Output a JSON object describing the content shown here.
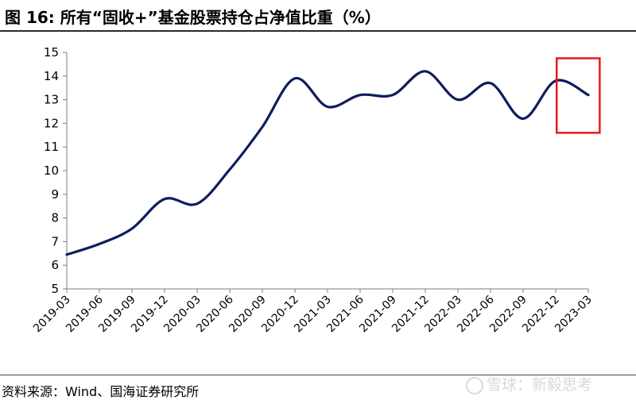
{
  "header": {
    "title": "图 16:  所有“固收+”基金股票持仓占净值比重（%）"
  },
  "footer": {
    "source": "资料来源：Wind、国海证券研究所",
    "watermark": "雪球：新毅思考"
  },
  "style": {
    "line_color": "#0f1c5e",
    "highlight_color": "#e8191a",
    "axis_color": "#7f7f7f"
  },
  "chart_data": {
    "type": "line",
    "title": "所有“固收+”基金股票持仓占净值比重（%）",
    "xlabel": "",
    "ylabel": "",
    "ylim": [
      5,
      15
    ],
    "yticks": [
      5,
      6,
      7,
      8,
      9,
      10,
      11,
      12,
      13,
      14,
      15
    ],
    "x": [
      "2019-03",
      "2019-06",
      "2019-09",
      "2019-12",
      "2020-03",
      "2020-06",
      "2020-09",
      "2020-12",
      "2021-03",
      "2021-06",
      "2021-09",
      "2021-12",
      "2022-03",
      "2022-06",
      "2022-09",
      "2022-12",
      "2023-03"
    ],
    "series": [
      {
        "values": [
          6.45,
          6.9,
          7.55,
          8.8,
          8.6,
          10.05,
          11.85,
          13.9,
          12.7,
          13.2,
          13.2,
          14.2,
          13.0,
          13.7,
          12.2,
          13.8,
          13.2
        ]
      }
    ],
    "grid": false,
    "legend": "none",
    "highlight": {
      "from": "2022-12",
      "to": "2023-03"
    }
  }
}
